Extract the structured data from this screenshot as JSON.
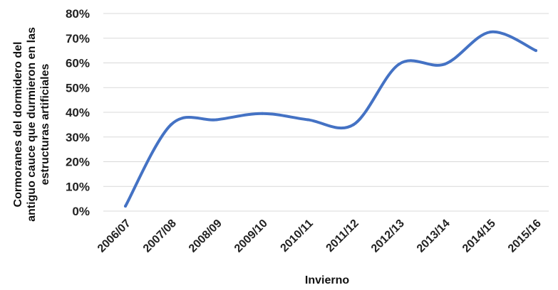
{
  "chart_data": {
    "type": "line",
    "categories": [
      "2006/07",
      "2007/08",
      "2008/09",
      "2009/10",
      "2010/11",
      "2011/12",
      "2012/13",
      "2013/14",
      "2014/15",
      "2015/16"
    ],
    "series": [
      {
        "values": [
          2,
          35,
          37,
          39.5,
          37,
          35,
          59.5,
          59.5,
          72.5,
          65
        ]
      }
    ],
    "ylim": [
      0,
      80
    ],
    "yticks": [
      0,
      10,
      20,
      30,
      40,
      50,
      60,
      70,
      80
    ],
    "ytick_labels": [
      "0%",
      "10%",
      "20%",
      "30%",
      "40%",
      "50%",
      "60%",
      "70%",
      "80%"
    ],
    "xlabel": "Invierno",
    "ylabel_lines": [
      "Cormoranes del dormidero del",
      "antiguo cauce que durmieron en las",
      "estructuras artificiales"
    ],
    "grid": true,
    "line_color": "#4472c4"
  }
}
